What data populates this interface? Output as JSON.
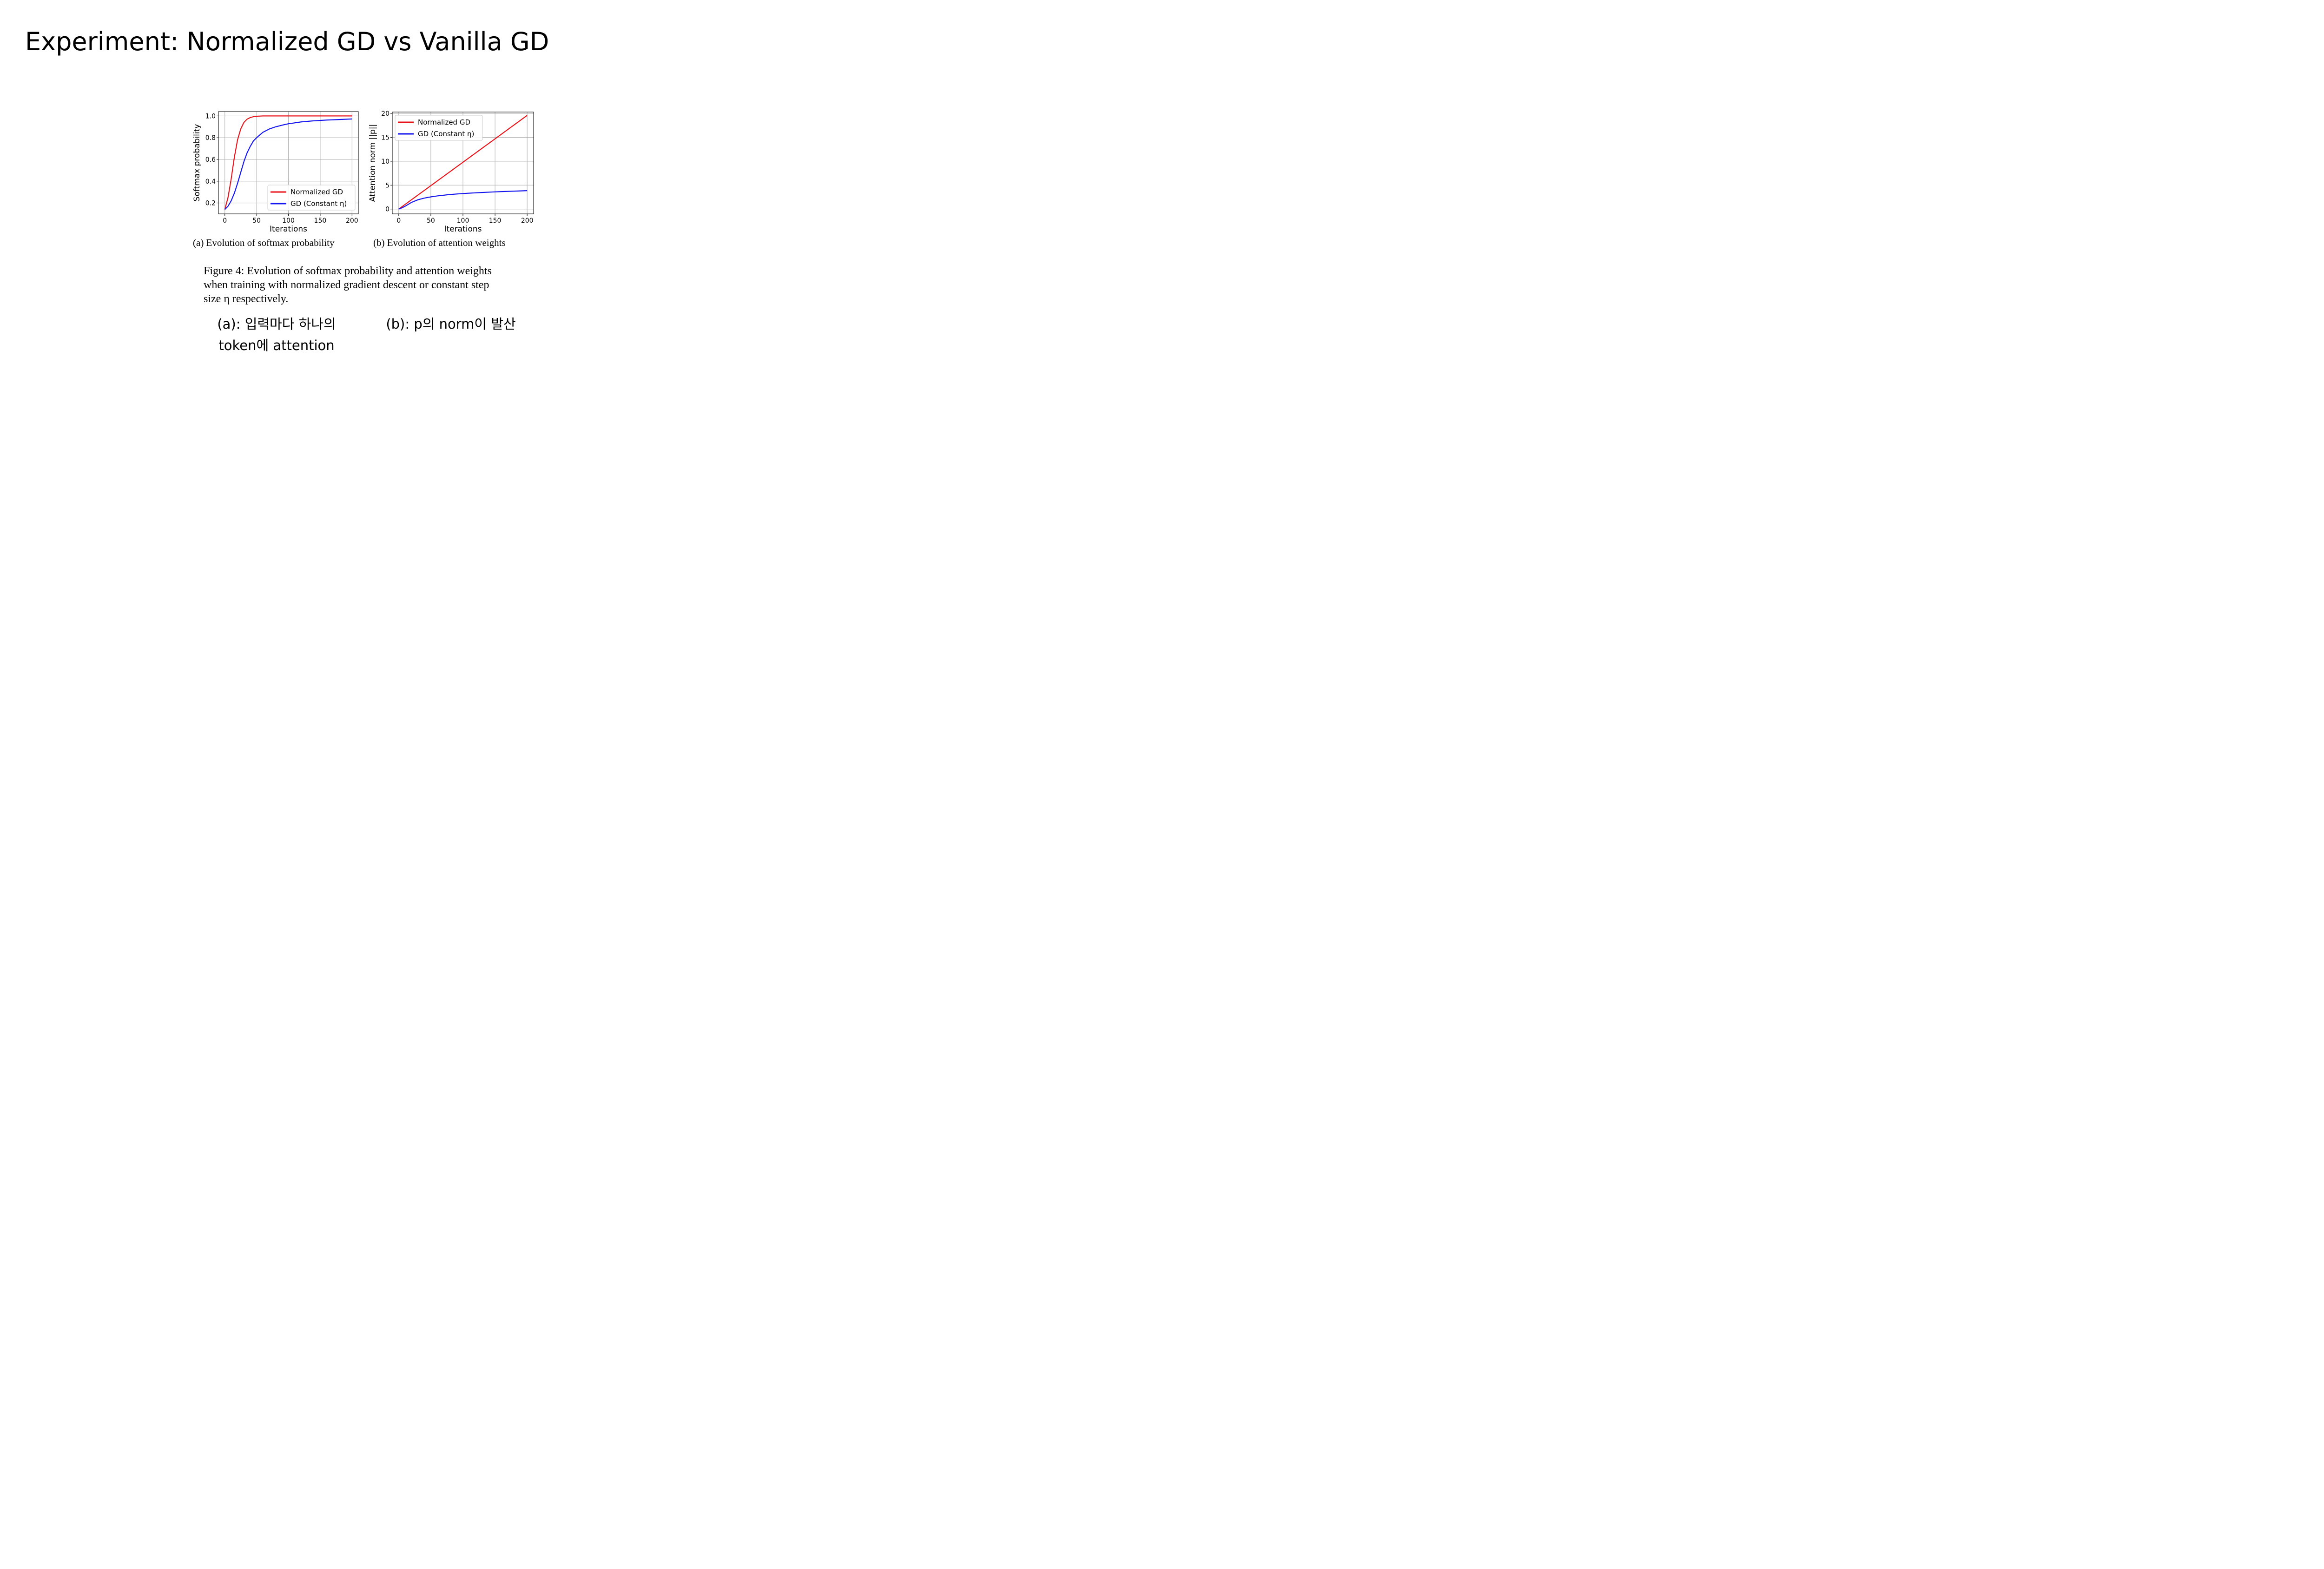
{
  "slide": {
    "title": "Experiment: Normalized GD vs Vanilla GD"
  },
  "colors": {
    "normalized": "#e8141b",
    "constant": "#1616ee",
    "grid": "#b0b0b0"
  },
  "chart_data": [
    {
      "type": "line",
      "xlabel": "Iterations",
      "ylabel": "Softmax probability",
      "xlim": [
        -10,
        210
      ],
      "ylim": [
        0.1,
        1.04
      ],
      "xticks": [
        0,
        50,
        100,
        150,
        200
      ],
      "xtick_labels": [
        "0",
        "50",
        "100",
        "150",
        "200"
      ],
      "yticks": [
        0.2,
        0.4,
        0.6,
        0.8,
        1.0
      ],
      "ytick_labels": [
        "0.2",
        "0.4",
        "0.6",
        "0.8",
        "1.0"
      ],
      "grid": true,
      "legend_position": "lower-right",
      "subcaption": "(a)  Evolution of softmax probability",
      "series": [
        {
          "name": "Normalized GD",
          "color": "#e8141b",
          "x": [
            0,
            5,
            10,
            15,
            20,
            25,
            30,
            35,
            40,
            45,
            50,
            60,
            70,
            80,
            100,
            150,
            200
          ],
          "y": [
            0.14,
            0.25,
            0.42,
            0.62,
            0.78,
            0.88,
            0.94,
            0.97,
            0.985,
            0.993,
            0.997,
            1.0,
            1.0,
            1.0,
            1.0,
            1.0,
            1.0
          ]
        },
        {
          "name": "GD (Constant η)",
          "color": "#1616ee",
          "x": [
            0,
            5,
            10,
            15,
            20,
            25,
            30,
            35,
            40,
            45,
            50,
            60,
            70,
            80,
            90,
            100,
            120,
            140,
            160,
            180,
            200
          ],
          "y": [
            0.14,
            0.17,
            0.22,
            0.29,
            0.38,
            0.48,
            0.58,
            0.66,
            0.72,
            0.77,
            0.8,
            0.85,
            0.88,
            0.9,
            0.915,
            0.928,
            0.945,
            0.955,
            0.962,
            0.967,
            0.972
          ]
        }
      ]
    },
    {
      "type": "line",
      "xlabel": "Iterations",
      "ylabel": "Attention norm ||p||",
      "xlim": [
        -10,
        210
      ],
      "ylim": [
        -1,
        20.3
      ],
      "xticks": [
        0,
        50,
        100,
        150,
        200
      ],
      "xtick_labels": [
        "0",
        "50",
        "100",
        "150",
        "200"
      ],
      "yticks": [
        0,
        5,
        10,
        15,
        20
      ],
      "ytick_labels": [
        "0",
        "5",
        "10",
        "15",
        "20"
      ],
      "grid": true,
      "legend_position": "upper-left",
      "subcaption": "(b)  Evolution of attention weights",
      "series": [
        {
          "name": "Normalized GD",
          "color": "#e8141b",
          "x": [
            0,
            50,
            100,
            150,
            200
          ],
          "y": [
            0,
            4.9,
            9.8,
            14.7,
            19.6
          ]
        },
        {
          "name": "GD (Constant η)",
          "color": "#1616ee",
          "x": [
            0,
            5,
            10,
            15,
            20,
            30,
            40,
            50,
            60,
            80,
            100,
            120,
            150,
            180,
            200
          ],
          "y": [
            0,
            0.25,
            0.6,
            1.0,
            1.4,
            1.95,
            2.3,
            2.55,
            2.75,
            3.05,
            3.25,
            3.4,
            3.6,
            3.75,
            3.85
          ]
        }
      ]
    }
  ],
  "figure_caption": {
    "lines": [
      "Figure 4:   Evolution of softmax probability and attention weights",
      "when training with normalized gradient descent or constant step",
      "size η respectively."
    ]
  },
  "notes": {
    "a_line1": "(a): 입력마다 하나의",
    "a_line2": "token에 attention",
    "b": "(b): p의 norm이 발산"
  }
}
